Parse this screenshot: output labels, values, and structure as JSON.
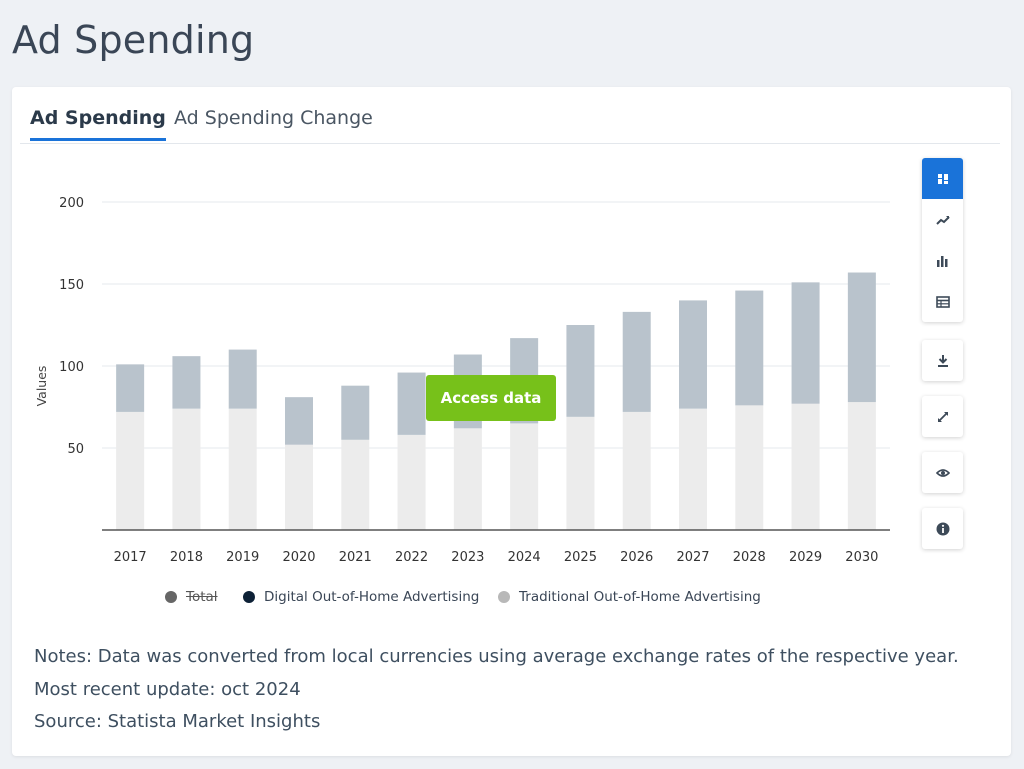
{
  "page": {
    "title": "Ad Spending"
  },
  "tabs": [
    {
      "label": "Ad Spending",
      "active": true
    },
    {
      "label": "Ad Spending Change",
      "active": false
    }
  ],
  "access_button": {
    "label": "Access data"
  },
  "toolbar": {
    "icons": [
      "chart-type-stacked-icon",
      "line-chart-icon",
      "bar-chart-icon",
      "table-icon",
      "download-icon",
      "expand-icon",
      "eye-icon",
      "info-icon"
    ]
  },
  "notes": {
    "note": "Notes: Data was converted from local currencies using average exchange rates of the respective year.",
    "update": "Most recent update: oct 2024",
    "source": "Source: Statista Market Insights"
  },
  "colors": {
    "digital": "#b9c3cc",
    "traditional": "#ececec",
    "total_legend": "#666666",
    "digital_legend": "#0d2136",
    "traditional_legend": "#b8b8b8",
    "accent": "#1a73d9",
    "access_green": "#77c11a"
  },
  "chart_data": {
    "type": "bar",
    "stacked": true,
    "categories": [
      "2017",
      "2018",
      "2019",
      "2020",
      "2021",
      "2022",
      "2023",
      "2024",
      "2025",
      "2026",
      "2027",
      "2028",
      "2029",
      "2030"
    ],
    "series": [
      {
        "name": "Traditional Out-of-Home Advertising",
        "values": [
          72,
          74,
          74,
          52,
          55,
          58,
          62,
          65,
          69,
          72,
          74,
          76,
          77,
          78
        ]
      },
      {
        "name": "Digital Out-of-Home Advertising",
        "values": [
          29,
          32,
          36,
          29,
          33,
          38,
          45,
          52,
          56,
          61,
          66,
          70,
          74,
          79
        ]
      }
    ],
    "legend": [
      {
        "name": "Total",
        "hidden": true
      },
      {
        "name": "Digital Out-of-Home Advertising"
      },
      {
        "name": "Traditional Out-of-Home Advertising"
      }
    ],
    "ylabel": "Values",
    "xlabel": "",
    "ylim": [
      0,
      200
    ],
    "yticks": [
      50,
      100,
      150,
      200
    ],
    "grid": true,
    "legend_position": "bottom"
  }
}
